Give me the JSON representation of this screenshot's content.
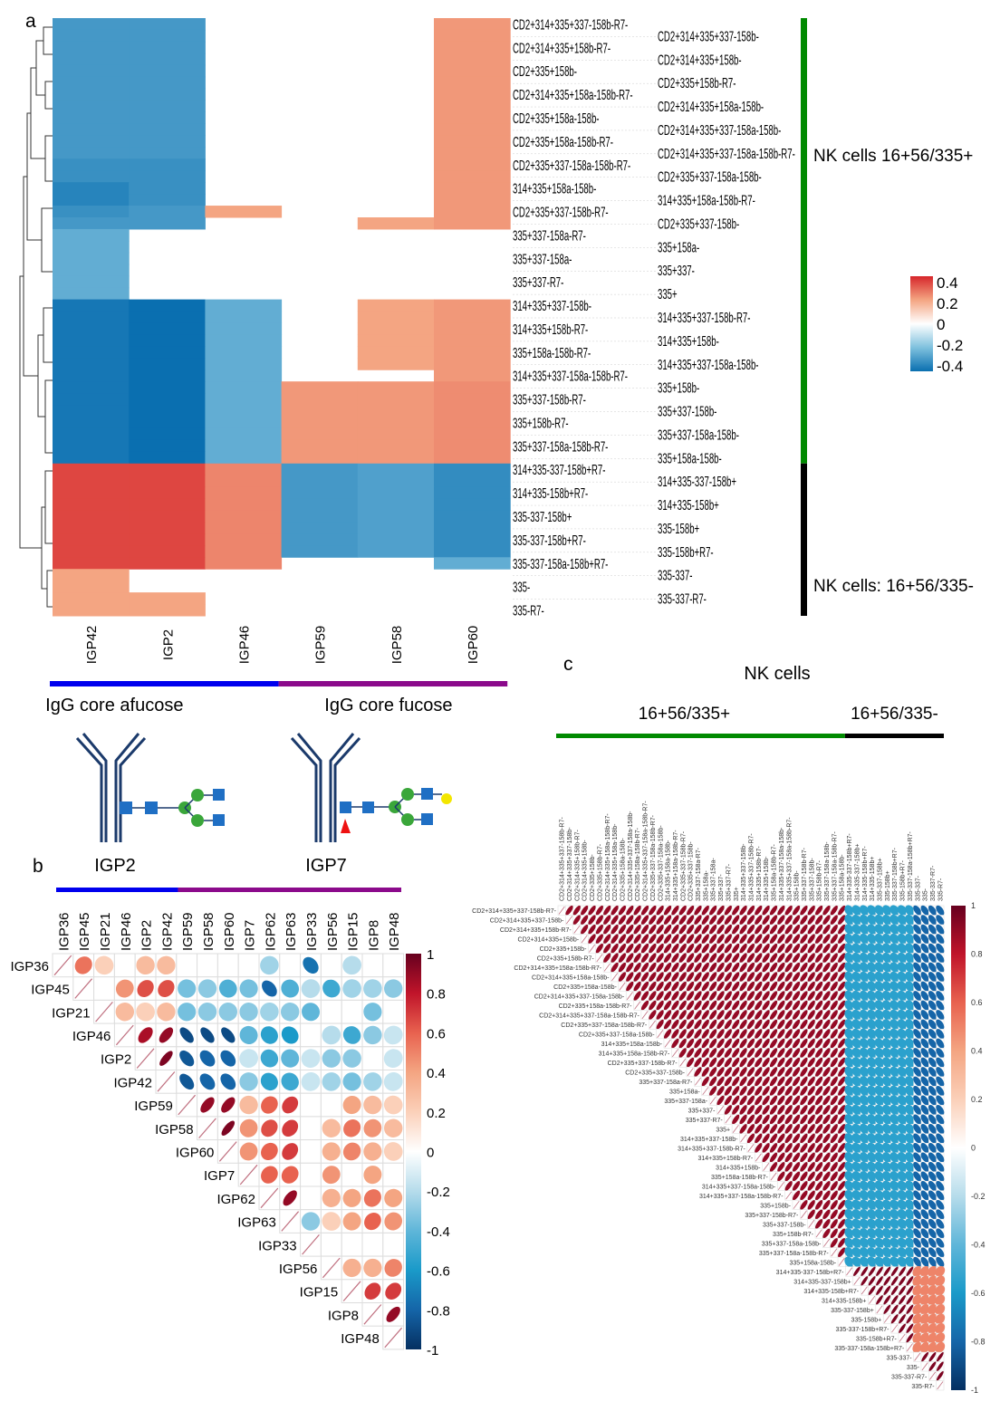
{
  "panel_labels": {
    "a": "a",
    "b": "b",
    "c": "c"
  },
  "chart_data": [
    {
      "type": "heatmap",
      "id": "a",
      "columns": [
        "IGP42",
        "IGP2",
        "IGP46",
        "IGP59",
        "IGP58",
        "IGP60"
      ],
      "rows": [
        "CD2+314+335+337-158b-R7-",
        "CD2+314+335+337-158b-",
        "CD2+314+335+158b-R7-",
        "CD2+314+335+158b-",
        "CD2+335+158b-",
        "CD2+335+158b-R7-",
        "CD2+314+335+158a-158b-R7-",
        "CD2+314+335+158a-158b-",
        "CD2+335+158a-158b-",
        "CD2+314+335+337-158a-158b-",
        "CD2+335+158a-158b-R7-",
        "CD2+314+335+337-158a-158b-R7-",
        "CD2+335+337-158a-158b-R7-",
        "CD2+335+337-158a-158b-",
        "314+335+158a-158b-",
        "314+335+158a-158b-R7-",
        "CD2+335+337-158b-R7-",
        "CD2+335+337-158b-",
        "335+337-158a-R7-",
        "335+158a-",
        "335+337-158a-",
        "335+337-",
        "335+337-R7-",
        "335+",
        "314+335+337-158b-",
        "314+335+337-158b-R7-",
        "314+335+158b-R7-",
        "314+335+158b-",
        "335+158a-158b-R7-",
        "314+335+337-158a-158b-",
        "314+335+337-158a-158b-R7-",
        "335+158b-",
        "335+337-158b-R7-",
        "335+337-158b-",
        "335+158b-R7-",
        "335+337-158a-158b-",
        "335+337-158a-158b-R7-",
        "335+158a-158b-",
        "314+335-337-158b+R7-",
        "314+335-337-158b+",
        "314+335-158b+R7-",
        "314+335-158b+",
        "335-337-158b+",
        "335-158b+",
        "335-337-158b+R7-",
        "335-158b+R7-",
        "335-337-158a-158b+R7-",
        "335-337-",
        "335-",
        "335-337-R7-",
        "335-R7-"
      ],
      "values": [
        [
          -0.3,
          -0.3,
          null,
          null,
          null,
          0.22
        ],
        [
          -0.3,
          -0.3,
          null,
          null,
          null,
          0.22
        ],
        [
          -0.3,
          -0.3,
          null,
          null,
          null,
          0.22
        ],
        [
          -0.3,
          -0.3,
          null,
          null,
          null,
          0.22
        ],
        [
          -0.3,
          -0.3,
          null,
          null,
          null,
          0.22
        ],
        [
          -0.3,
          -0.3,
          null,
          null,
          null,
          0.22
        ],
        [
          -0.3,
          -0.3,
          null,
          null,
          null,
          0.22
        ],
        [
          -0.3,
          -0.3,
          null,
          null,
          null,
          0.22
        ],
        [
          -0.3,
          -0.3,
          null,
          null,
          null,
          0.22
        ],
        [
          -0.3,
          -0.3,
          null,
          null,
          null,
          0.22
        ],
        [
          -0.3,
          -0.3,
          null,
          null,
          null,
          0.22
        ],
        [
          -0.3,
          -0.3,
          null,
          null,
          null,
          0.22
        ],
        [
          -0.32,
          -0.32,
          null,
          null,
          null,
          0.22
        ],
        [
          -0.32,
          -0.32,
          null,
          null,
          null,
          0.22
        ],
        [
          -0.35,
          -0.32,
          null,
          null,
          null,
          0.22
        ],
        [
          -0.35,
          -0.32,
          null,
          null,
          null,
          0.22
        ],
        [
          -0.32,
          -0.3,
          0.2,
          null,
          null,
          0.22
        ],
        [
          -0.3,
          -0.3,
          null,
          null,
          0.2,
          0.22
        ],
        [
          -0.25,
          null,
          null,
          null,
          null,
          null
        ],
        [
          -0.25,
          null,
          null,
          null,
          null,
          null
        ],
        [
          -0.25,
          null,
          null,
          null,
          null,
          null
        ],
        [
          -0.25,
          null,
          null,
          null,
          null,
          null
        ],
        [
          -0.25,
          null,
          null,
          null,
          null,
          null
        ],
        [
          -0.25,
          null,
          null,
          null,
          null,
          null
        ],
        [
          -0.38,
          -0.4,
          -0.25,
          null,
          0.2,
          0.22
        ],
        [
          -0.38,
          -0.4,
          -0.25,
          null,
          0.2,
          0.22
        ],
        [
          -0.38,
          -0.4,
          -0.25,
          null,
          0.2,
          0.22
        ],
        [
          -0.38,
          -0.4,
          -0.25,
          null,
          0.2,
          0.22
        ],
        [
          -0.38,
          -0.4,
          -0.25,
          null,
          0.2,
          0.22
        ],
        [
          -0.38,
          -0.4,
          -0.25,
          null,
          0.2,
          0.22
        ],
        [
          -0.38,
          -0.4,
          -0.25,
          null,
          null,
          0.22
        ],
        [
          -0.38,
          -0.42,
          -0.25,
          0.22,
          0.22,
          0.24
        ],
        [
          -0.38,
          -0.42,
          -0.25,
          0.22,
          0.22,
          0.24
        ],
        [
          -0.38,
          -0.42,
          -0.25,
          0.22,
          0.22,
          0.24
        ],
        [
          -0.38,
          -0.42,
          -0.25,
          0.22,
          0.22,
          0.24
        ],
        [
          -0.38,
          -0.42,
          -0.25,
          0.22,
          0.22,
          0.24
        ],
        [
          -0.38,
          -0.42,
          -0.25,
          0.22,
          0.22,
          0.24
        ],
        [
          -0.38,
          -0.42,
          -0.25,
          0.22,
          0.22,
          0.24
        ],
        [
          0.35,
          0.35,
          0.25,
          -0.3,
          -0.28,
          -0.33
        ],
        [
          0.35,
          0.35,
          0.25,
          -0.3,
          -0.28,
          -0.33
        ],
        [
          0.35,
          0.35,
          0.25,
          -0.3,
          -0.28,
          -0.33
        ],
        [
          0.35,
          0.35,
          0.25,
          -0.3,
          -0.28,
          -0.33
        ],
        [
          0.35,
          0.35,
          0.25,
          -0.3,
          -0.28,
          -0.33
        ],
        [
          0.35,
          0.35,
          0.25,
          -0.3,
          -0.28,
          -0.33
        ],
        [
          0.35,
          0.35,
          0.25,
          -0.3,
          -0.28,
          -0.33
        ],
        [
          0.35,
          0.35,
          0.25,
          -0.3,
          -0.28,
          -0.33
        ],
        [
          0.35,
          0.35,
          0.25,
          null,
          null,
          -0.25
        ],
        [
          0.2,
          null,
          null,
          null,
          null,
          null
        ],
        [
          0.2,
          null,
          null,
          null,
          null,
          null
        ],
        [
          0.2,
          0.2,
          null,
          null,
          null,
          null
        ],
        [
          0.2,
          0.2,
          null,
          null,
          null,
          null
        ]
      ],
      "legend_ticks": [
        "0.4",
        "0.2",
        "0",
        "-0.2",
        "-0.4"
      ],
      "color_range": [
        -0.4,
        0.4
      ],
      "row_groups": [
        {
          "label": "NK cells 16+56/335+",
          "count": 38,
          "color": "#008a00"
        },
        {
          "label": "NK cells: 16+56/335-",
          "count": 13,
          "color": "#000000"
        }
      ],
      "column_groups": [
        {
          "label": "IgG core afucose",
          "count": 3,
          "color": "#0000ee"
        },
        {
          "label": "IgG core fucose",
          "count": 3,
          "color": "#8b0a8b"
        }
      ],
      "glycan_examples": [
        {
          "label": "IGP2"
        },
        {
          "label": "IGP7"
        }
      ]
    },
    {
      "type": "heatmap",
      "id": "b",
      "variables": [
        "IGP36",
        "IGP45",
        "IGP21",
        "IGP46",
        "IGP2",
        "IGP42",
        "IGP59",
        "IGP58",
        "IGP60",
        "IGP7",
        "IGP62",
        "IGP63",
        "IGP33",
        "IGP56",
        "IGP15",
        "IGP8",
        "IGP48"
      ],
      "upper_triangle": [
        [
          1,
          0.55,
          0.2,
          null,
          0.3,
          0.3,
          null,
          null,
          null,
          null,
          -0.25,
          null,
          -0.75,
          null,
          -0.2,
          null,
          null
        ],
        [
          1,
          null,
          0.45,
          0.65,
          0.65,
          -0.35,
          -0.3,
          -0.45,
          -0.35,
          -0.8,
          -0.45,
          -0.2,
          -0.5,
          -0.25,
          -0.25,
          -0.3
        ],
        [
          1,
          0.3,
          0.2,
          0.3,
          -0.35,
          -0.3,
          -0.3,
          -0.3,
          -0.25,
          -0.3,
          -0.4,
          null,
          null,
          -0.35,
          null
        ],
        [
          1,
          0.85,
          0.9,
          -0.9,
          -0.9,
          -0.9,
          -0.4,
          -0.55,
          -0.6,
          null,
          -0.2,
          -0.5,
          -0.3,
          -0.15
        ],
        [
          1,
          0.95,
          -0.85,
          -0.8,
          -0.8,
          -0.15,
          -0.5,
          -0.4,
          -0.15,
          -0.3,
          -0.3,
          null,
          -0.15
        ],
        [
          1,
          -0.85,
          -0.8,
          -0.8,
          -0.3,
          -0.55,
          -0.5,
          -0.15,
          -0.25,
          -0.35,
          -0.25,
          -0.15
        ],
        [
          1,
          0.9,
          0.9,
          0.3,
          0.6,
          0.7,
          null,
          null,
          0.4,
          0.3,
          0.2
        ],
        [
          1,
          0.95,
          0.45,
          0.65,
          0.7,
          null,
          0.3,
          0.55,
          0.45,
          0.3
        ],
        [
          1,
          0.45,
          0.6,
          0.7,
          null,
          0.35,
          0.5,
          0.35,
          0.2
        ],
        [
          1,
          0.6,
          0.6,
          null,
          0.45,
          null,
          0.4,
          null
        ],
        [
          1,
          0.9,
          null,
          0.35,
          0.4,
          0.55,
          0.4
        ],
        [
          1,
          -0.3,
          0.2,
          0.4,
          0.6,
          0.45
        ],
        [
          1,
          null,
          null,
          null,
          null
        ],
        [
          1,
          0.35,
          0.35,
          0.5
        ],
        [
          1,
          0.7,
          0.7
        ],
        [
          1,
          0.9
        ],
        [
          1
        ]
      ],
      "legend_ticks": [
        "1",
        "0.8",
        "0.6",
        "0.4",
        "0.2",
        "0",
        "-0.2",
        "-0.4",
        "-0.6",
        "-0.8",
        "-1"
      ],
      "color_range": [
        -1,
        1
      ],
      "column_groups": [
        {
          "count": 6,
          "color": "#0000ee"
        },
        {
          "count": 11,
          "color": "#8b0a8b"
        }
      ]
    },
    {
      "type": "heatmap",
      "id": "c",
      "title": "NK cells",
      "column_groups": [
        {
          "label": "16+56/335+",
          "count": 38,
          "color": "#008a00"
        },
        {
          "label": "16+56/335-",
          "count": 13,
          "color": "#000000"
        }
      ],
      "variables_from": "a.rows",
      "block_sizes": [
        38,
        9,
        4
      ],
      "block_correlations": [
        [
          0.9,
          -0.55,
          -0.8
        ],
        [
          -0.55,
          0.95,
          0.5
        ],
        [
          -0.8,
          0.5,
          0.95
        ]
      ],
      "legend_ticks": [
        "1",
        "0.8",
        "0.6",
        "0.4",
        "0.2",
        "0",
        "-0.2",
        "-0.4",
        "-0.6",
        "-0.8",
        "-1"
      ],
      "color_range": [
        -1,
        1
      ]
    }
  ]
}
